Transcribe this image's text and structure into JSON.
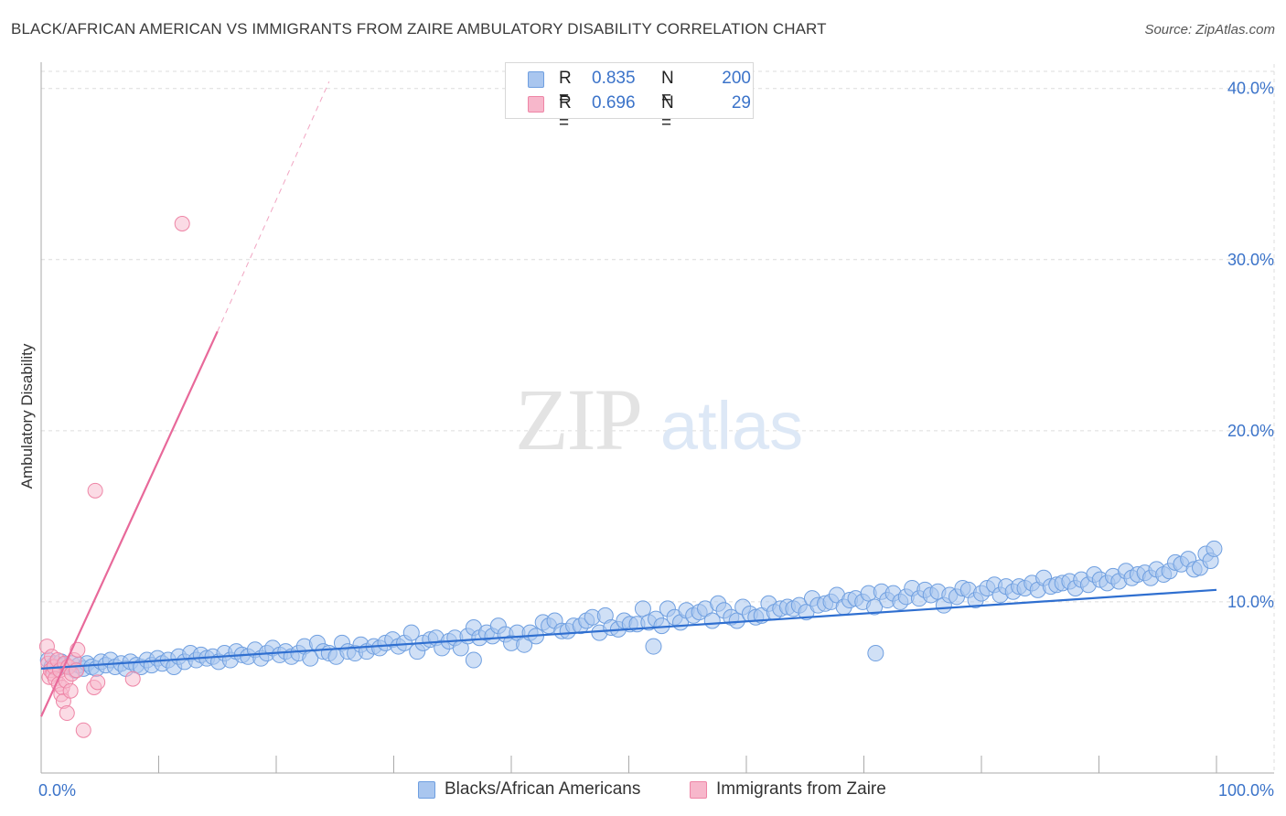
{
  "header": {
    "title": "BLACK/AFRICAN AMERICAN VS IMMIGRANTS FROM ZAIRE AMBULATORY DISABILITY CORRELATION CHART",
    "source": "Source: ZipAtlas.com"
  },
  "watermark": {
    "zip": "ZIP",
    "atlas": "atlas"
  },
  "colors": {
    "blue_fill": "#a9c6ef",
    "blue_stroke": "#6f9fe0",
    "blue_line": "#2f6fd0",
    "pink_fill": "#f7b7cb",
    "pink_stroke": "#ee85a6",
    "pink_line": "#e8699a",
    "tick_label": "#3b73c9",
    "grid": "#dcdcdc"
  },
  "legend": {
    "rows": [
      {
        "r_label": "R =",
        "r_value": "0.835",
        "n_label": "N =",
        "n_value": "200"
      },
      {
        "r_label": "R =",
        "r_value": "0.696",
        "n_label": "N =",
        "n_value": "29"
      }
    ]
  },
  "bottom_legend": {
    "series_1": "Blacks/African Americans",
    "series_2": "Immigrants from Zaire"
  },
  "chart_data": {
    "type": "scatter",
    "title": "BLACK/AFRICAN AMERICAN VS IMMIGRANTS FROM ZAIRE AMBULATORY DISABILITY CORRELATION CHART",
    "ylabel": "Ambulatory Disability",
    "xlabel": "",
    "xlim": [
      0,
      100
    ],
    "ylim": [
      0,
      41
    ],
    "x_tick_labels": [
      "0.0%",
      "100.0%"
    ],
    "y_ticks": [
      10,
      20,
      30,
      40
    ],
    "y_tick_labels": [
      "10.0%",
      "20.0%",
      "30.0%",
      "40.0%"
    ],
    "grid": true,
    "legend_position": "top-center",
    "series": [
      {
        "name": "Blacks/African Americans",
        "R": 0.835,
        "N": 200,
        "trend": {
          "x": [
            0,
            100
          ],
          "y": [
            6.1,
            10.7
          ]
        },
        "points": [
          [
            0.6,
            6.6
          ],
          [
            0.9,
            6.2
          ],
          [
            1.2,
            6.4
          ],
          [
            1.4,
            6.1
          ],
          [
            1.7,
            6.5
          ],
          [
            2,
            6.3
          ],
          [
            2.3,
            6.2
          ],
          [
            2.6,
            6.4
          ],
          [
            2.9,
            6.0
          ],
          [
            3.2,
            6.3
          ],
          [
            3.6,
            6.1
          ],
          [
            3.9,
            6.4
          ],
          [
            4.3,
            6.2
          ],
          [
            4.7,
            6.1
          ],
          [
            5.1,
            6.5
          ],
          [
            5.5,
            6.3
          ],
          [
            5.9,
            6.6
          ],
          [
            6.3,
            6.2
          ],
          [
            6.8,
            6.4
          ],
          [
            7.2,
            6.1
          ],
          [
            7.6,
            6.5
          ],
          [
            8.1,
            6.3
          ],
          [
            8.5,
            6.2
          ],
          [
            9,
            6.6
          ],
          [
            9.4,
            6.3
          ],
          [
            9.9,
            6.7
          ],
          [
            10.3,
            6.4
          ],
          [
            10.8,
            6.6
          ],
          [
            11.3,
            6.2
          ],
          [
            11.7,
            6.8
          ],
          [
            12.2,
            6.5
          ],
          [
            12.7,
            7.0
          ],
          [
            13.2,
            6.6
          ],
          [
            13.6,
            6.9
          ],
          [
            14.1,
            6.7
          ],
          [
            14.6,
            6.8
          ],
          [
            15.1,
            6.5
          ],
          [
            15.6,
            7.0
          ],
          [
            16.1,
            6.6
          ],
          [
            16.6,
            7.1
          ],
          [
            17.1,
            6.9
          ],
          [
            17.6,
            6.8
          ],
          [
            18.2,
            7.2
          ],
          [
            18.7,
            6.7
          ],
          [
            19.2,
            7.0
          ],
          [
            19.7,
            7.3
          ],
          [
            20.3,
            6.9
          ],
          [
            20.8,
            7.1
          ],
          [
            21.3,
            6.8
          ],
          [
            21.9,
            7.0
          ],
          [
            22.4,
            7.4
          ],
          [
            22.9,
            6.7
          ],
          [
            23.5,
            7.6
          ],
          [
            24,
            7.1
          ],
          [
            24.5,
            7.0
          ],
          [
            25.1,
            6.8
          ],
          [
            25.6,
            7.6
          ],
          [
            26.1,
            7.1
          ],
          [
            26.7,
            7.0
          ],
          [
            27.2,
            7.5
          ],
          [
            27.7,
            7.1
          ],
          [
            28.3,
            7.4
          ],
          [
            28.8,
            7.3
          ],
          [
            29.3,
            7.6
          ],
          [
            29.9,
            7.8
          ],
          [
            30.4,
            7.4
          ],
          [
            30.9,
            7.6
          ],
          [
            31.5,
            8.2
          ],
          [
            32,
            7.1
          ],
          [
            32.5,
            7.6
          ],
          [
            33.1,
            7.8
          ],
          [
            33.6,
            7.9
          ],
          [
            34.1,
            7.3
          ],
          [
            34.7,
            7.7
          ],
          [
            35.2,
            7.9
          ],
          [
            35.7,
            7.3
          ],
          [
            36.3,
            8.0
          ],
          [
            36.8,
            8.5
          ],
          [
            37.3,
            7.9
          ],
          [
            37.9,
            8.2
          ],
          [
            38.4,
            8.0
          ],
          [
            38.9,
            8.6
          ],
          [
            39.5,
            8.1
          ],
          [
            40,
            7.6
          ],
          [
            40.5,
            8.2
          ],
          [
            41.1,
            7.5
          ],
          [
            41.6,
            8.2
          ],
          [
            42.1,
            8.0
          ],
          [
            42.7,
            8.8
          ],
          [
            43.2,
            8.6
          ],
          [
            43.7,
            8.9
          ],
          [
            44.3,
            8.3
          ],
          [
            44.8,
            8.3
          ],
          [
            45.3,
            8.6
          ],
          [
            45.9,
            8.6
          ],
          [
            46.4,
            8.9
          ],
          [
            46.9,
            9.1
          ],
          [
            47.5,
            8.2
          ],
          [
            48,
            9.2
          ],
          [
            48.5,
            8.5
          ],
          [
            49.1,
            8.4
          ],
          [
            49.6,
            8.9
          ],
          [
            50.1,
            8.7
          ],
          [
            50.7,
            8.7
          ],
          [
            51.2,
            9.6
          ],
          [
            51.7,
            8.8
          ],
          [
            52.3,
            9.0
          ],
          [
            52.8,
            8.6
          ],
          [
            53.3,
            9.6
          ],
          [
            53.9,
            9.1
          ],
          [
            54.4,
            8.8
          ],
          [
            54.9,
            9.5
          ],
          [
            55.5,
            9.2
          ],
          [
            56,
            9.4
          ],
          [
            56.5,
            9.6
          ],
          [
            57.1,
            8.9
          ],
          [
            57.6,
            9.9
          ],
          [
            58.1,
            9.5
          ],
          [
            58.7,
            9.1
          ],
          [
            59.2,
            8.9
          ],
          [
            59.7,
            9.7
          ],
          [
            60.3,
            9.3
          ],
          [
            60.8,
            9.1
          ],
          [
            61.3,
            9.2
          ],
          [
            61.9,
            9.9
          ],
          [
            62.4,
            9.4
          ],
          [
            62.9,
            9.6
          ],
          [
            63.5,
            9.7
          ],
          [
            64,
            9.6
          ],
          [
            64.5,
            9.8
          ],
          [
            65.1,
            9.4
          ],
          [
            65.6,
            10.2
          ],
          [
            66.1,
            9.8
          ],
          [
            66.7,
            9.9
          ],
          [
            67.2,
            10.0
          ],
          [
            67.7,
            10.4
          ],
          [
            68.3,
            9.7
          ],
          [
            68.8,
            10.1
          ],
          [
            69.3,
            10.2
          ],
          [
            69.9,
            10.0
          ],
          [
            70.4,
            10.5
          ],
          [
            70.9,
            9.7
          ],
          [
            71.5,
            10.6
          ],
          [
            72,
            10.1
          ],
          [
            72.5,
            10.5
          ],
          [
            73.1,
            10.0
          ],
          [
            73.6,
            10.3
          ],
          [
            74.1,
            10.8
          ],
          [
            74.7,
            10.2
          ],
          [
            75.2,
            10.7
          ],
          [
            75.7,
            10.4
          ],
          [
            76.3,
            10.6
          ],
          [
            76.8,
            9.8
          ],
          [
            77.3,
            10.4
          ],
          [
            77.9,
            10.3
          ],
          [
            78.4,
            10.8
          ],
          [
            78.9,
            10.7
          ],
          [
            79.5,
            10.1
          ],
          [
            80,
            10.5
          ],
          [
            80.5,
            10.8
          ],
          [
            81.1,
            11.0
          ],
          [
            81.6,
            10.4
          ],
          [
            82.1,
            10.9
          ],
          [
            82.7,
            10.6
          ],
          [
            83.2,
            10.9
          ],
          [
            83.7,
            10.8
          ],
          [
            84.3,
            11.1
          ],
          [
            84.8,
            10.7
          ],
          [
            85.3,
            11.4
          ],
          [
            85.9,
            10.9
          ],
          [
            86.4,
            11.0
          ],
          [
            86.9,
            11.1
          ],
          [
            87.5,
            11.2
          ],
          [
            88,
            10.8
          ],
          [
            88.5,
            11.3
          ],
          [
            89.1,
            11.0
          ],
          [
            89.6,
            11.6
          ],
          [
            90.1,
            11.3
          ],
          [
            90.7,
            11.1
          ],
          [
            91.2,
            11.5
          ],
          [
            91.7,
            11.2
          ],
          [
            92.3,
            11.8
          ],
          [
            92.8,
            11.4
          ],
          [
            93.3,
            11.6
          ],
          [
            93.9,
            11.7
          ],
          [
            94.4,
            11.4
          ],
          [
            94.9,
            11.9
          ],
          [
            95.5,
            11.6
          ],
          [
            96,
            11.8
          ],
          [
            96.5,
            12.3
          ],
          [
            97,
            12.2
          ],
          [
            97.6,
            12.5
          ],
          [
            98.1,
            11.9
          ],
          [
            98.6,
            12.0
          ],
          [
            99.1,
            12.8
          ],
          [
            99.5,
            12.4
          ],
          [
            99.8,
            13.1
          ],
          [
            36.8,
            6.6
          ],
          [
            52.1,
            7.4
          ],
          [
            71,
            7.0
          ]
        ]
      },
      {
        "name": "Immigrants from Zaire",
        "R": 0.696,
        "N": 29,
        "trend_solid": {
          "x": [
            0,
            15
          ],
          "y": [
            3.3,
            25.8
          ]
        },
        "trend_dashed": {
          "x": [
            15,
            24.5
          ],
          "y": [
            25.8,
            40.4
          ]
        },
        "points": [
          [
            0.5,
            7.4
          ],
          [
            0.6,
            6.4
          ],
          [
            0.7,
            5.6
          ],
          [
            0.8,
            6.0
          ],
          [
            0.9,
            6.8
          ],
          [
            1.0,
            5.8
          ],
          [
            1.1,
            6.2
          ],
          [
            1.2,
            5.5
          ],
          [
            1.4,
            6.6
          ],
          [
            1.5,
            5.2
          ],
          [
            1.6,
            6.0
          ],
          [
            1.7,
            4.6
          ],
          [
            1.8,
            5.0
          ],
          [
            1.9,
            4.2
          ],
          [
            2.0,
            6.4
          ],
          [
            2.1,
            5.4
          ],
          [
            2.2,
            3.5
          ],
          [
            2.3,
            6.2
          ],
          [
            2.5,
            4.8
          ],
          [
            2.6,
            5.8
          ],
          [
            2.8,
            6.6
          ],
          [
            3.0,
            6.0
          ],
          [
            3.1,
            7.2
          ],
          [
            3.6,
            2.5
          ],
          [
            4.5,
            5.0
          ],
          [
            4.6,
            16.5
          ],
          [
            4.8,
            5.3
          ],
          [
            7.8,
            5.5
          ],
          [
            12.0,
            32.1
          ]
        ]
      }
    ]
  }
}
